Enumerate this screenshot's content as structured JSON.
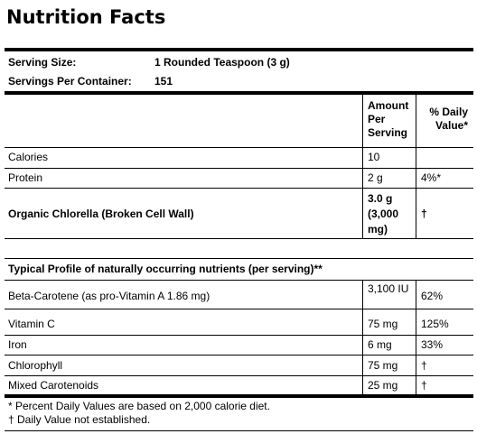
{
  "title": "Nutrition Facts",
  "serving": [
    {
      "label": "Serving Size:",
      "value": "1 Rounded Teaspoon (3 g)"
    },
    {
      "label": "Servings Per Container:",
      "value": "151"
    }
  ],
  "header": {
    "amount": "Amount Per Serving",
    "daily_value": "% Daily Value*"
  },
  "rows": [
    {
      "name": "Calories",
      "amount": "10",
      "daily_value": ""
    },
    {
      "name": "Protein",
      "amount": "2 g",
      "daily_value": "4%*"
    },
    {
      "name": "Organic Chlorella (Broken Cell Wall)",
      "amount": "3.0 g (3,000 mg)",
      "daily_value": "†"
    }
  ],
  "section_title": "Typical Profile of naturally occurring nutrients (per serving)**",
  "profile_rows": [
    {
      "name": "Beta-Carotene (as pro-Vitamin A 1.86 mg)",
      "amount": "3,100 IU",
      "daily_value": "62%"
    },
    {
      "name": "Vitamin C",
      "amount": "75 mg",
      "daily_value": "125%"
    },
    {
      "name": "Iron",
      "amount": "6 mg",
      "daily_value": "33%"
    },
    {
      "name": "Chlorophyll",
      "amount": "75 mg",
      "daily_value": "†"
    },
    {
      "name": "Mixed Carotenoids",
      "amount": "25 mg",
      "daily_value": "†"
    }
  ],
  "footnotes": [
    "* Percent Daily Values are based on 2,000 calorie diet.",
    "† Daily Value not established."
  ]
}
